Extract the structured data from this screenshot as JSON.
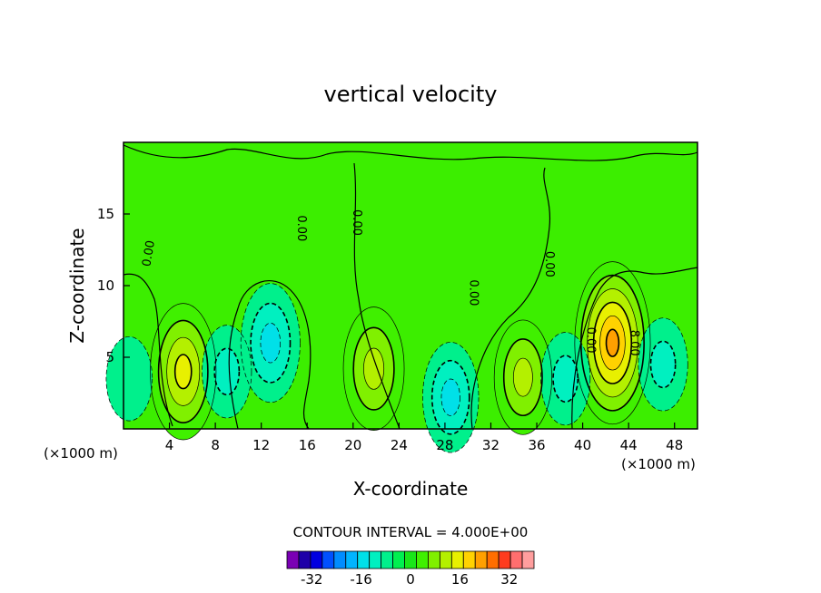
{
  "chart_data": {
    "type": "heatmap",
    "title": "vertical velocity",
    "xlabel": "X-coordinate",
    "ylabel": "Z-coordinate",
    "x_unit": "(×1000 m)",
    "y_unit": "(×1000 m)",
    "xlim": [
      0,
      50
    ],
    "ylim": [
      0,
      20
    ],
    "x_ticks": [
      4,
      8,
      12,
      16,
      20,
      24,
      28,
      32,
      36,
      40,
      44,
      48
    ],
    "y_ticks": [
      5,
      10,
      15
    ],
    "grid": false,
    "contour_interval_text": "CONTOUR INTERVAL = 4.000E+00",
    "contour_interval": 4.0,
    "contour_labels": [
      "0.00",
      "0.00",
      "0.00",
      "0.00",
      "0.00",
      "0.00",
      "8.00"
    ],
    "colorbar": {
      "tick_labels": [
        "-32",
        "-16",
        "0",
        "16",
        "32"
      ],
      "tick_values": [
        -32,
        -16,
        0,
        16,
        32
      ],
      "levels": [
        -40,
        -36,
        -32,
        -28,
        -24,
        -20,
        -16,
        -12,
        -8,
        -4,
        0,
        4,
        8,
        12,
        16,
        20,
        24,
        28,
        32,
        36,
        40
      ],
      "colors": [
        "#7a00b4",
        "#1e00a8",
        "#0000e0",
        "#0050ff",
        "#008cff",
        "#00b4ff",
        "#00e0e8",
        "#00f0c0",
        "#00f08c",
        "#00f050",
        "#19e619",
        "#40f000",
        "#80f000",
        "#b4f000",
        "#e8f000",
        "#ffd200",
        "#ffa000",
        "#ff6e00",
        "#ff3c1e",
        "#ff6e6e",
        "#ff9e9e"
      ]
    },
    "background_color": "#3cee00",
    "features": [
      {
        "x": 5.2,
        "z": 4.0,
        "peak": 18
      },
      {
        "x": 21.8,
        "z": 4.2,
        "peak": 15
      },
      {
        "x": 34.8,
        "z": 3.6,
        "peak": 13
      },
      {
        "x": 42.6,
        "z": 6.0,
        "peak": 24
      },
      {
        "x": 12.8,
        "z": 6.0,
        "peak": -14
      },
      {
        "x": 9.0,
        "z": 4.0,
        "peak": -8
      },
      {
        "x": 28.5,
        "z": 2.2,
        "peak": -12
      },
      {
        "x": 38.5,
        "z": 3.5,
        "peak": -8
      },
      {
        "x": 47.0,
        "z": 4.5,
        "peak": -8
      },
      {
        "x": 0.5,
        "z": 3.5,
        "peak": -6
      }
    ]
  }
}
